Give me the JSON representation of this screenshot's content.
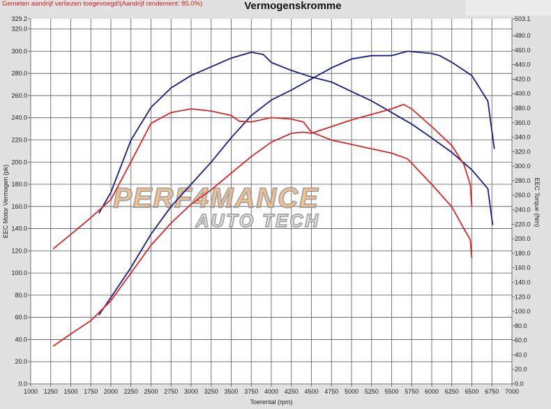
{
  "header": {
    "note": "Gemeten aandrijf verliezen toegevoegd!(Aandrijf rendement: 85.0%)",
    "title": "Vermogenskromme"
  },
  "watermark": {
    "line1": "PERF4MANCE",
    "line2": "AUTO TECH"
  },
  "chart_data": {
    "type": "line",
    "title": "Vermogenskromme",
    "xlabel": "Toerental (rpm)",
    "ylabel": "EEC Motor Vermogen (pk)",
    "y2label": "EEC Torque (Nm)",
    "xlim": [
      1000,
      7000
    ],
    "ylim": [
      0,
      329.2
    ],
    "y2lim": [
      0,
      503.1
    ],
    "grid": true,
    "xticks": [
      "1000",
      "1250",
      "1500",
      "1750",
      "2000",
      "2250",
      "2500",
      "2750",
      "3000",
      "3250",
      "3500",
      "3750",
      "4000",
      "4250",
      "4500",
      "4750",
      "5000",
      "5250",
      "5500",
      "5750",
      "6000",
      "6250",
      "6500",
      "6750",
      "7000"
    ],
    "yticks": [
      "0.0",
      "20.0",
      "40.0",
      "60.0",
      "80.0",
      "100.0",
      "120.0",
      "140.0",
      "160.0",
      "180.0",
      "200.0",
      "220.0",
      "240.0",
      "260.0",
      "280.0",
      "300.0",
      "320.0",
      "329.2"
    ],
    "y2ticks": [
      "0.0",
      "20.0",
      "40.0",
      "60.0",
      "80.0",
      "100.0",
      "120.0",
      "140.0",
      "160.0",
      "180.0",
      "200.0",
      "220.0",
      "240.0",
      "260.0",
      "280.0",
      "300.0",
      "320.0",
      "340.0",
      "360.0",
      "380.0",
      "400.0",
      "420.0",
      "440.0",
      "460.0",
      "480.0",
      "503.1"
    ],
    "series": [
      {
        "name": "Blue torque",
        "axis": "right",
        "color": "#1a1a80",
        "x": [
          1850,
          2000,
          2250,
          2500,
          2750,
          3000,
          3250,
          3500,
          3750,
          3900,
          4000,
          4250,
          4500,
          4750,
          5000,
          5250,
          5500,
          5750,
          6000,
          6250,
          6500,
          6700,
          6760
        ],
        "y": [
          235,
          264,
          336,
          381,
          408,
          425,
          437,
          449,
          457,
          454,
          443,
          432,
          423,
          416,
          403,
          390,
          374,
          358,
          339,
          319,
          295,
          269,
          219
        ]
      },
      {
        "name": "Blue power",
        "axis": "left",
        "color": "#1a1a80",
        "x": [
          1850,
          2000,
          2250,
          2500,
          2750,
          3000,
          3250,
          3500,
          3750,
          4000,
          4250,
          4500,
          4750,
          5000,
          5250,
          5500,
          5700,
          6000,
          6100,
          6250,
          6500,
          6700,
          6780
        ],
        "y": [
          62,
          78,
          105,
          135,
          160,
          180,
          200,
          222,
          242,
          256,
          265,
          275,
          285,
          293,
          296,
          296,
          300,
          298,
          296,
          290,
          278,
          255,
          212
        ]
      },
      {
        "name": "Red torque",
        "axis": "right",
        "color": "#d02828",
        "x": [
          1280,
          1500,
          1750,
          2000,
          2250,
          2500,
          2750,
          3000,
          3250,
          3500,
          3600,
          3750,
          4000,
          4250,
          4400,
          4500,
          4750,
          5000,
          5250,
          5500,
          5700,
          6000,
          6250,
          6400,
          6480,
          6500
        ],
        "y": [
          186,
          206,
          229,
          254,
          306,
          359,
          374,
          379,
          376,
          370,
          362,
          361,
          367,
          365,
          361,
          347,
          336,
          330,
          324,
          318,
          310,
          275,
          244,
          214,
          199,
          173
        ]
      },
      {
        "name": "Red power",
        "axis": "left",
        "color": "#d02828",
        "x": [
          1280,
          1500,
          1750,
          2000,
          2250,
          2500,
          2750,
          3000,
          3250,
          3500,
          3750,
          4000,
          4250,
          4400,
          4500,
          4750,
          5000,
          5250,
          5500,
          5650,
          5750,
          6000,
          6250,
          6400,
          6480,
          6500
        ],
        "y": [
          34,
          45,
          57,
          75,
          100,
          125,
          145,
          162,
          175,
          190,
          205,
          218,
          226,
          227,
          226,
          232,
          238,
          243,
          248,
          252,
          248,
          232,
          215,
          198,
          180,
          160
        ]
      }
    ]
  }
}
